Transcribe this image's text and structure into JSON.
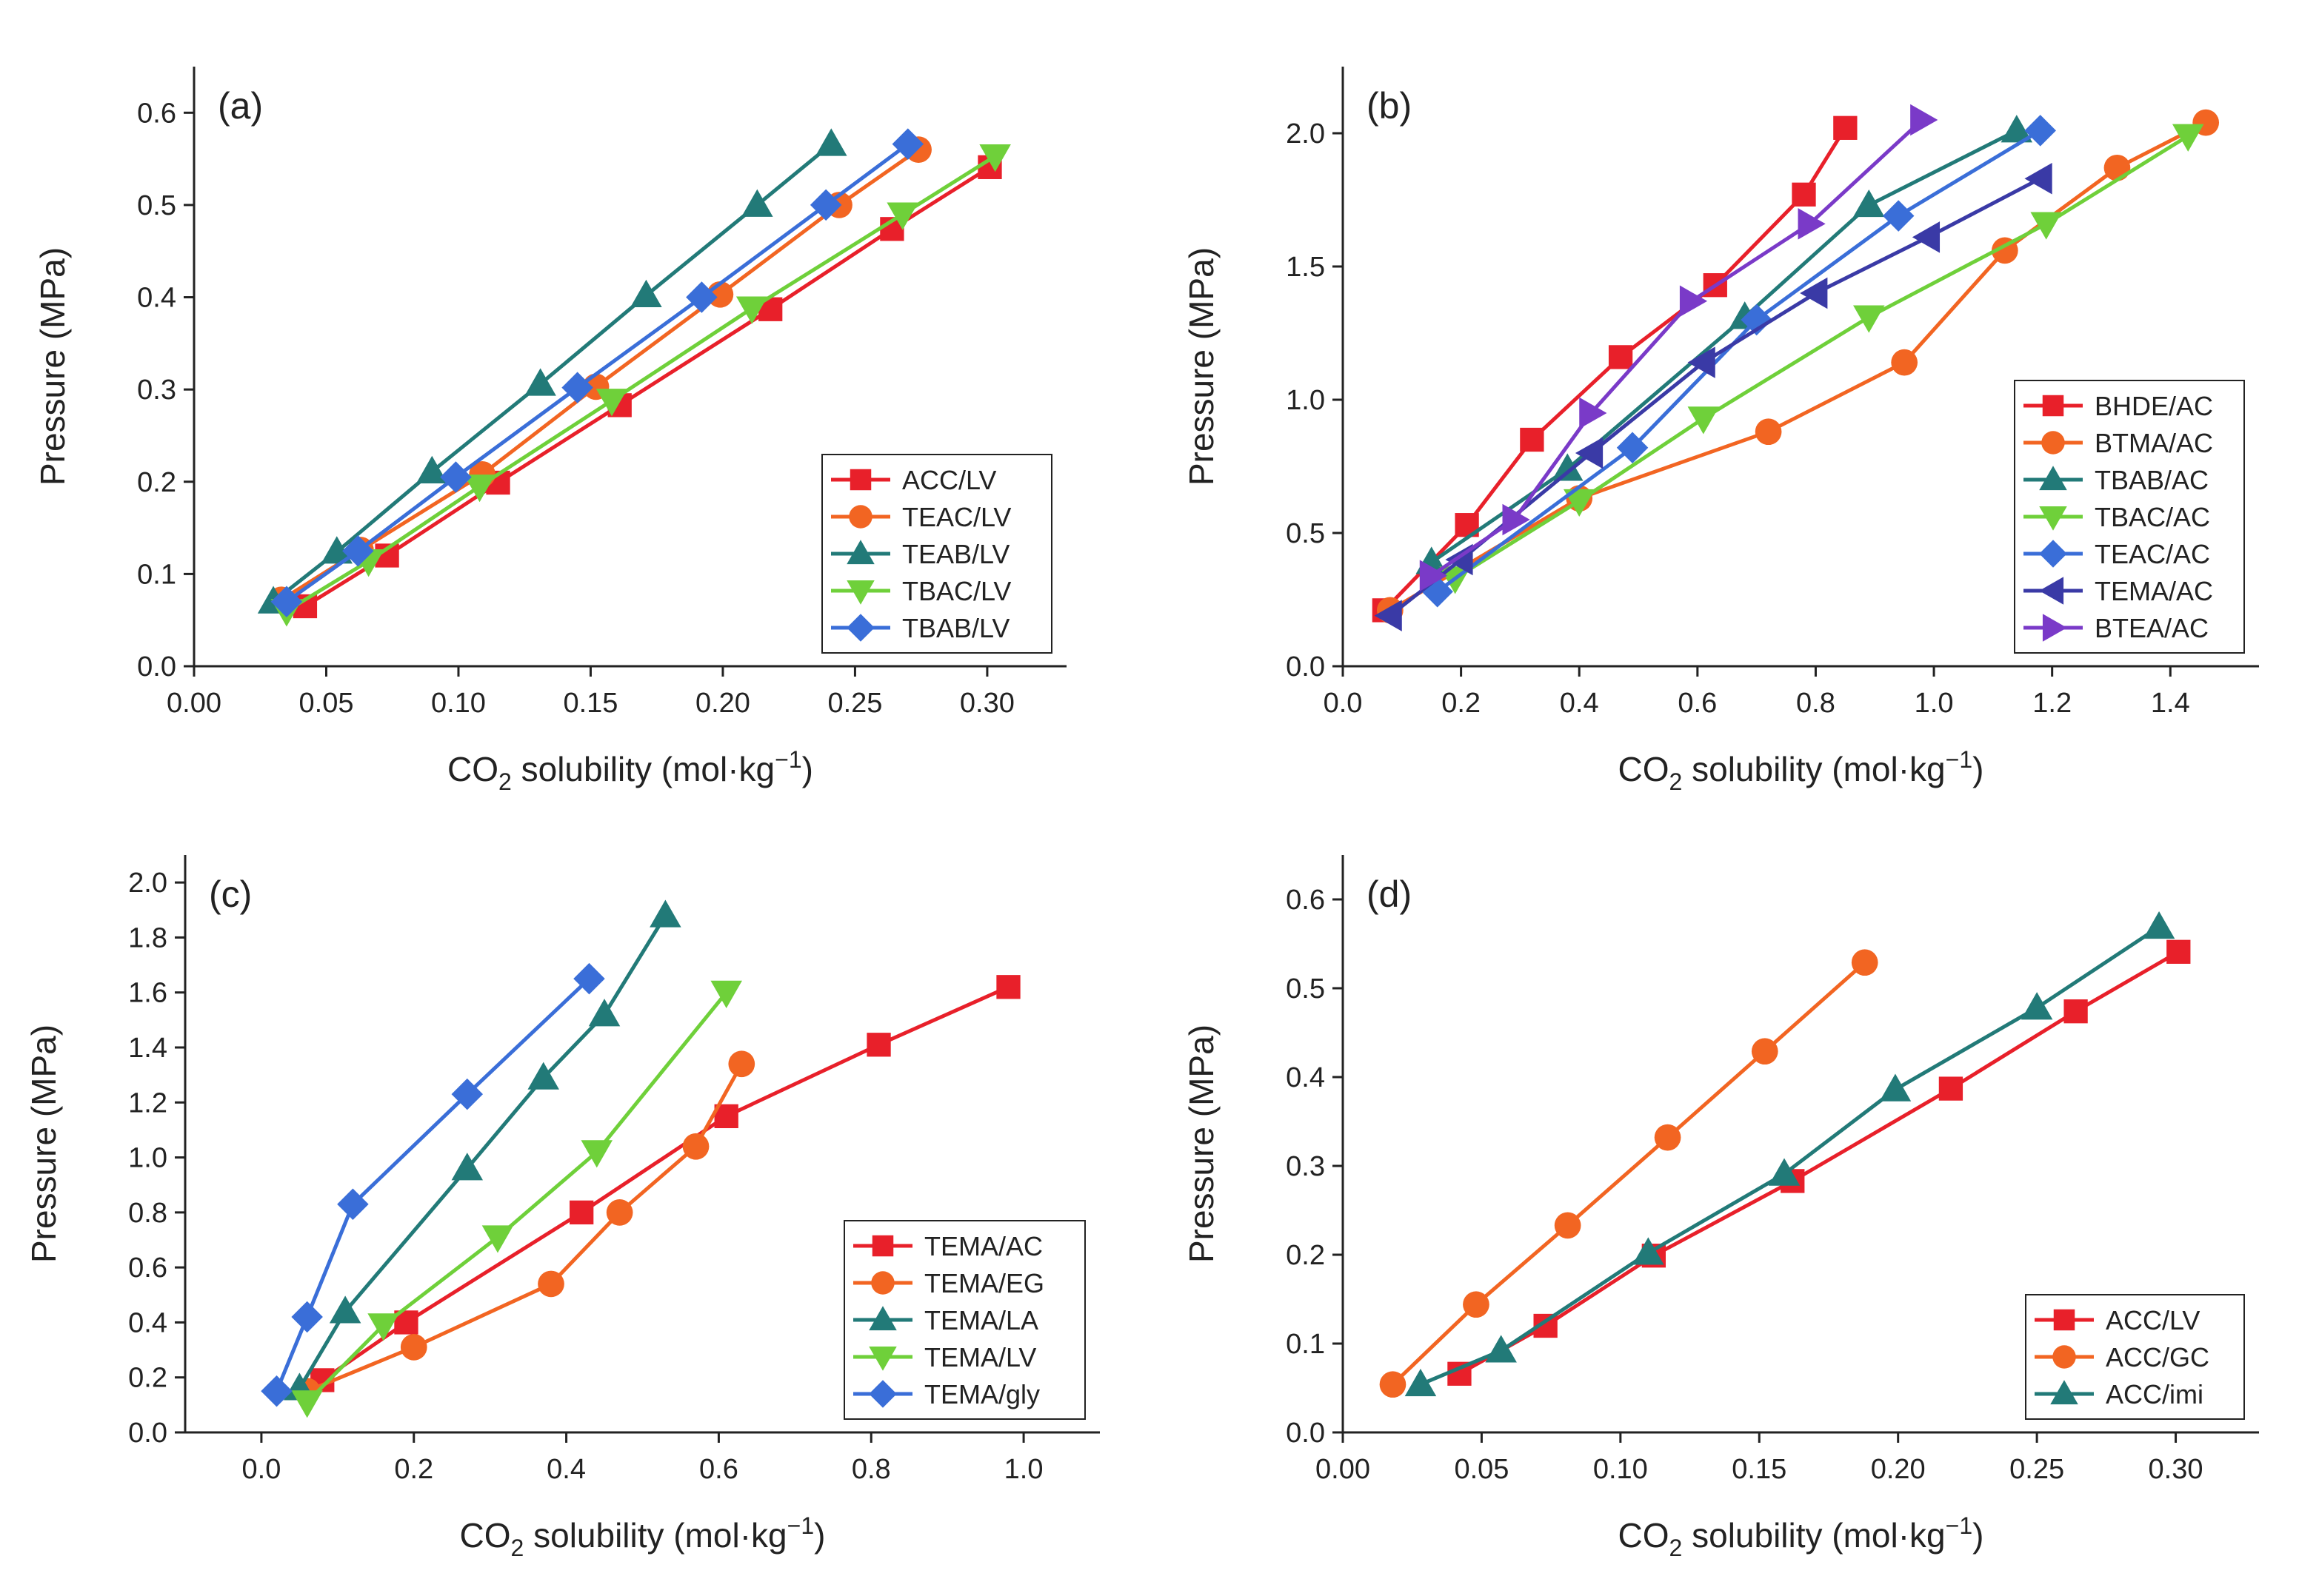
{
  "chart_data": [
    {
      "type": "line",
      "panel_label": "(a)",
      "xlabel": "CO2 solubility (mol·kg−1)",
      "xlabel_main": "CO",
      "xlabel_sub": "2",
      "xlabel_rest": " solubility (mol·kg",
      "xlabel_sup": "−1",
      "xlabel_close": ")",
      "ylabel": "Pressure (MPa)",
      "xlim": [
        0.0,
        0.33
      ],
      "ylim": [
        0.0,
        0.65
      ],
      "xticks": [
        0.0,
        0.05,
        0.1,
        0.15,
        0.2,
        0.25,
        0.3
      ],
      "xtick_labels": [
        "0.00",
        "0.05",
        "0.10",
        "0.15",
        "0.20",
        "0.25",
        "0.30"
      ],
      "yticks": [
        0.0,
        0.1,
        0.2,
        0.3,
        0.4,
        0.5,
        0.6
      ],
      "ytick_labels": [
        "0.0",
        "0.1",
        "0.2",
        "0.3",
        "0.4",
        "0.5",
        "0.6"
      ],
      "legend_position": "lower-right",
      "series": [
        {
          "name": "ACC/LV",
          "color": "#e8202a",
          "marker": "square",
          "x": [
            0.042,
            0.073,
            0.115,
            0.161,
            0.218,
            0.264,
            0.301
          ],
          "y": [
            0.065,
            0.12,
            0.199,
            0.283,
            0.387,
            0.474,
            0.541
          ]
        },
        {
          "name": "TEAC/LV",
          "color": "#f26522",
          "marker": "circle",
          "x": [
            0.033,
            0.063,
            0.109,
            0.152,
            0.199,
            0.244,
            0.274
          ],
          "y": [
            0.072,
            0.126,
            0.208,
            0.303,
            0.403,
            0.5,
            0.56
          ]
        },
        {
          "name": "TEAB/LV",
          "color": "#227a78",
          "marker": "triangle-up",
          "x": [
            0.03,
            0.054,
            0.09,
            0.131,
            0.171,
            0.213,
            0.241
          ],
          "y": [
            0.07,
            0.124,
            0.211,
            0.306,
            0.402,
            0.5,
            0.566
          ]
        },
        {
          "name": "TBAC/LV",
          "color": "#6fd03a",
          "marker": "triangle-down",
          "x": [
            0.035,
            0.066,
            0.108,
            0.158,
            0.211,
            0.268,
            0.303
          ],
          "y": [
            0.06,
            0.114,
            0.195,
            0.288,
            0.388,
            0.49,
            0.553
          ]
        },
        {
          "name": "TBAB/LV",
          "color": "#3a6ed8",
          "marker": "diamond",
          "x": [
            0.035,
            0.062,
            0.099,
            0.145,
            0.192,
            0.239,
            0.27
          ],
          "y": [
            0.07,
            0.125,
            0.205,
            0.302,
            0.4,
            0.5,
            0.566
          ]
        }
      ]
    },
    {
      "type": "line",
      "panel_label": "(b)",
      "xlabel": "CO2 solubility (mol·kg−1)",
      "xlabel_main": "CO",
      "xlabel_sub": "2",
      "xlabel_rest": " solubility (mol·kg",
      "xlabel_sup": "−1",
      "xlabel_close": ")",
      "ylabel": "Pressure (MPa)",
      "xlim": [
        0.0,
        1.55
      ],
      "ylim": [
        0.0,
        2.25
      ],
      "xticks": [
        0.0,
        0.2,
        0.4,
        0.6,
        0.8,
        1.0,
        1.2,
        1.4
      ],
      "xtick_labels": [
        "0.0",
        "0.2",
        "0.4",
        "0.6",
        "0.8",
        "1.0",
        "1.2",
        "1.4"
      ],
      "yticks": [
        0.0,
        0.5,
        1.0,
        1.5,
        2.0
      ],
      "ytick_labels": [
        "0.0",
        "0.5",
        "1.0",
        "1.5",
        "2.0"
      ],
      "legend_position": "lower-right",
      "series": [
        {
          "name": "BHDE/AC",
          "color": "#e8202a",
          "marker": "square",
          "x": [
            0.07,
            0.21,
            0.32,
            0.47,
            0.63,
            0.78,
            0.85
          ],
          "y": [
            0.21,
            0.53,
            0.85,
            1.16,
            1.43,
            1.77,
            2.02
          ]
        },
        {
          "name": "BTMA/AC",
          "color": "#f26522",
          "marker": "circle",
          "x": [
            0.08,
            0.4,
            0.72,
            0.95,
            1.12,
            1.31,
            1.46
          ],
          "y": [
            0.21,
            0.63,
            0.88,
            1.14,
            1.56,
            1.87,
            2.04
          ]
        },
        {
          "name": "TBAB/AC",
          "color": "#227a78",
          "marker": "triangle-up",
          "x": [
            0.15,
            0.38,
            0.68,
            0.89,
            1.14
          ],
          "y": [
            0.39,
            0.74,
            1.31,
            1.73,
            2.01
          ]
        },
        {
          "name": "TBAC/AC",
          "color": "#6fd03a",
          "marker": "triangle-down",
          "x": [
            0.19,
            0.4,
            0.61,
            0.89,
            1.19,
            1.43
          ],
          "y": [
            0.33,
            0.62,
            0.93,
            1.31,
            1.66,
            1.99
          ]
        },
        {
          "name": "TEAC/AC",
          "color": "#3a6ed8",
          "marker": "diamond",
          "x": [
            0.16,
            0.49,
            0.7,
            0.94,
            1.18
          ],
          "y": [
            0.28,
            0.82,
            1.3,
            1.69,
            2.01
          ]
        },
        {
          "name": "TEMA/AC",
          "color": "#3a3aa6",
          "marker": "triangle-left",
          "x": [
            0.08,
            0.2,
            0.42,
            0.61,
            0.8,
            0.99,
            1.18
          ],
          "y": [
            0.19,
            0.4,
            0.8,
            1.14,
            1.4,
            1.61,
            1.83
          ]
        },
        {
          "name": "BTEA/AC",
          "color": "#7a3ac8",
          "marker": "triangle-right",
          "x": [
            0.15,
            0.29,
            0.42,
            0.59,
            0.79,
            0.98
          ],
          "y": [
            0.34,
            0.55,
            0.95,
            1.37,
            1.66,
            2.05
          ]
        }
      ]
    },
    {
      "type": "line",
      "panel_label": "(c)",
      "xlabel": "CO2 solubility (mol·kg−1)",
      "xlabel_main": "CO",
      "xlabel_sub": "2",
      "xlabel_rest": " solubility (mol·kg",
      "xlabel_sup": "−1",
      "xlabel_close": ")",
      "ylabel": "Pressure (MPa)",
      "xlim": [
        -0.1,
        1.1
      ],
      "ylim": [
        0.0,
        2.1
      ],
      "xticks": [
        0.0,
        0.2,
        0.4,
        0.6,
        0.8,
        1.0
      ],
      "xtick_labels": [
        "0.0",
        "0.2",
        "0.4",
        "0.6",
        "0.8",
        "1.0"
      ],
      "yticks": [
        0.0,
        0.2,
        0.4,
        0.6,
        0.8,
        1.0,
        1.2,
        1.4,
        1.6,
        1.8,
        2.0
      ],
      "ytick_labels": [
        "0.0",
        "0.2",
        "0.4",
        "0.6",
        "0.8",
        "1.0",
        "1.2",
        "1.4",
        "1.6",
        "1.8",
        "2.0"
      ],
      "legend_position": "lower-right",
      "series": [
        {
          "name": "TEMA/AC",
          "color": "#e8202a",
          "marker": "square",
          "x": [
            0.08,
            0.19,
            0.42,
            0.61,
            0.81,
            0.98
          ],
          "y": [
            0.19,
            0.4,
            0.8,
            1.15,
            1.41,
            1.62
          ]
        },
        {
          "name": "TEMA/EG",
          "color": "#f26522",
          "marker": "circle",
          "x": [
            0.06,
            0.2,
            0.38,
            0.47,
            0.57,
            0.63
          ],
          "y": [
            0.15,
            0.31,
            0.54,
            0.8,
            1.04,
            1.34
          ]
        },
        {
          "name": "TEMA/LA",
          "color": "#227a78",
          "marker": "triangle-up",
          "x": [
            0.05,
            0.11,
            0.27,
            0.37,
            0.45,
            0.53
          ],
          "y": [
            0.16,
            0.44,
            0.96,
            1.29,
            1.52,
            1.88
          ]
        },
        {
          "name": "TEMA/LV",
          "color": "#6fd03a",
          "marker": "triangle-down",
          "x": [
            0.06,
            0.16,
            0.31,
            0.44,
            0.61
          ],
          "y": [
            0.11,
            0.39,
            0.71,
            1.02,
            1.6
          ]
        },
        {
          "name": "TEMA/gly",
          "color": "#3a6ed8",
          "marker": "diamond",
          "x": [
            0.02,
            0.06,
            0.12,
            0.27,
            0.43
          ],
          "y": [
            0.15,
            0.42,
            0.83,
            1.23,
            1.65
          ]
        }
      ]
    },
    {
      "type": "line",
      "panel_label": "(d)",
      "xlabel": "CO2 solubility (mol·kg−1)",
      "xlabel_main": "CO",
      "xlabel_sub": "2",
      "xlabel_rest": " solubility (mol·kg",
      "xlabel_sup": "−1",
      "xlabel_close": ")",
      "ylabel": "Pressure (MPa)",
      "xlim": [
        0.0,
        0.33
      ],
      "ylim": [
        0.0,
        0.65
      ],
      "xticks": [
        0.0,
        0.05,
        0.1,
        0.15,
        0.2,
        0.25,
        0.3
      ],
      "xtick_labels": [
        "0.00",
        "0.05",
        "0.10",
        "0.15",
        "0.20",
        "0.25",
        "0.30"
      ],
      "yticks": [
        0.0,
        0.1,
        0.2,
        0.3,
        0.4,
        0.5,
        0.6
      ],
      "ytick_labels": [
        "0.0",
        "0.1",
        "0.2",
        "0.3",
        "0.4",
        "0.5",
        "0.6"
      ],
      "legend_position": "lower-right",
      "series": [
        {
          "name": "ACC/LV",
          "color": "#e8202a",
          "marker": "square",
          "x": [
            0.042,
            0.073,
            0.112,
            0.162,
            0.219,
            0.264,
            0.301
          ],
          "y": [
            0.066,
            0.12,
            0.199,
            0.283,
            0.387,
            0.474,
            0.541
          ]
        },
        {
          "name": "ACC/GC",
          "color": "#f26522",
          "marker": "circle",
          "x": [
            0.018,
            0.048,
            0.081,
            0.117,
            0.152,
            0.188
          ],
          "y": [
            0.054,
            0.144,
            0.233,
            0.332,
            0.429,
            0.529
          ]
        },
        {
          "name": "ACC/imi",
          "color": "#227a78",
          "marker": "triangle-up",
          "x": [
            0.028,
            0.057,
            0.11,
            0.159,
            0.199,
            0.25,
            0.294
          ],
          "y": [
            0.054,
            0.092,
            0.202,
            0.291,
            0.386,
            0.478,
            0.569
          ]
        }
      ]
    }
  ]
}
